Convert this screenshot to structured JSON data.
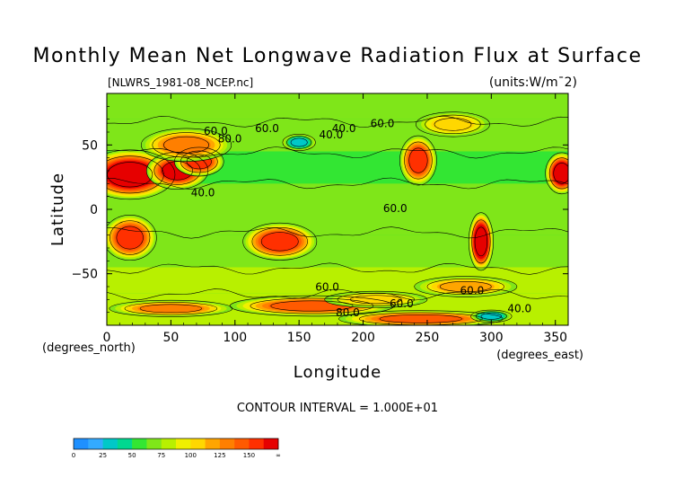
{
  "chart_data": {
    "type": "heatmap",
    "title": "Monthly Mean Net Longwave Radiation Flux at Surface",
    "file_label": "[NLWRS_1981-08_NCEP.nc]",
    "units_label": "(units:W/m¯2)",
    "xlabel": "Longitude",
    "ylabel": "Latitude",
    "x_unit_label": "(degrees_east)",
    "y_unit_label": "(degrees_north)",
    "xlim": [
      0,
      360
    ],
    "ylim": [
      -90,
      90
    ],
    "x_ticks": [
      0,
      50,
      100,
      150,
      200,
      250,
      300,
      350
    ],
    "y_ticks": [
      50,
      0,
      -50
    ],
    "contour_interval_text": "CONTOUR INTERVAL = 1.000E+01",
    "contour_labels": [
      {
        "text": "60.0",
        "lon": 85,
        "lat": 58
      },
      {
        "text": "80.0",
        "lon": 96,
        "lat": 52
      },
      {
        "text": "60.0",
        "lon": 125,
        "lat": 60
      },
      {
        "text": "40.0",
        "lon": 175,
        "lat": 55
      },
      {
        "text": "60.0",
        "lon": 215,
        "lat": 64
      },
      {
        "text": "40.0",
        "lon": 185,
        "lat": 60
      },
      {
        "text": "40.0",
        "lon": 75,
        "lat": 10
      },
      {
        "text": "60.0",
        "lon": 225,
        "lat": -2
      },
      {
        "text": "60.0",
        "lon": 172,
        "lat": -63
      },
      {
        "text": "60.0",
        "lon": 285,
        "lat": -66
      },
      {
        "text": "60.0",
        "lon": 230,
        "lat": -76
      },
      {
        "text": "80.0",
        "lon": 188,
        "lat": -83
      },
      {
        "text": "40.0",
        "lon": 322,
        "lat": -80
      }
    ],
    "colorbar": {
      "ticks": [
        "0",
        "25",
        "50",
        "75",
        "100",
        "125",
        "150",
        "∞"
      ],
      "colors": [
        "#1e90ff",
        "#33aaff",
        "#00c8c8",
        "#00d890",
        "#33e633",
        "#7fe619",
        "#b8f000",
        "#f0f000",
        "#ffd700",
        "#ffa500",
        "#ff7f00",
        "#ff5a00",
        "#ff3000",
        "#e60000"
      ]
    },
    "anomalies": [
      {
        "lon": 18,
        "lat": 27,
        "level": 140,
        "rlon": 22,
        "rlat": 12
      },
      {
        "lon": 55,
        "lat": 30,
        "level": 135,
        "rlon": 15,
        "rlat": 9
      },
      {
        "lon": 72,
        "lat": 37,
        "level": 125,
        "rlon": 12,
        "rlat": 7
      },
      {
        "lon": 62,
        "lat": 50,
        "level": 100,
        "rlon": 22,
        "rlat": 8
      },
      {
        "lon": 18,
        "lat": -22,
        "level": 120,
        "rlon": 13,
        "rlat": 11
      },
      {
        "lon": 135,
        "lat": -25,
        "level": 125,
        "rlon": 18,
        "rlat": 9
      },
      {
        "lon": 243,
        "lat": 38,
        "level": 125,
        "rlon": 9,
        "rlat": 12
      },
      {
        "lon": 292,
        "lat": -25,
        "level": 150,
        "rlon": 6,
        "rlat": 14
      },
      {
        "lon": 355,
        "lat": 28,
        "level": 140,
        "rlon": 8,
        "rlat": 10
      },
      {
        "lon": 160,
        "lat": -75,
        "level": 110,
        "rlon": 40,
        "rlat": 5
      },
      {
        "lon": 50,
        "lat": -77,
        "level": 105,
        "rlon": 30,
        "rlat": 4
      },
      {
        "lon": 280,
        "lat": -60,
        "level": 90,
        "rlon": 25,
        "rlat": 5
      },
      {
        "lon": 245,
        "lat": -85,
        "level": 110,
        "rlon": 40,
        "rlat": 4
      },
      {
        "lon": 150,
        "lat": 52,
        "level": 20,
        "rlon": 8,
        "rlat": 4
      },
      {
        "lon": 300,
        "lat": -83,
        "level": 20,
        "rlon": 10,
        "rlat": 3
      },
      {
        "lon": 270,
        "lat": 66,
        "level": 85,
        "rlon": 18,
        "rlat": 6
      },
      {
        "lon": 210,
        "lat": -70,
        "level": 85,
        "rlon": 25,
        "rlat": 4
      }
    ]
  }
}
